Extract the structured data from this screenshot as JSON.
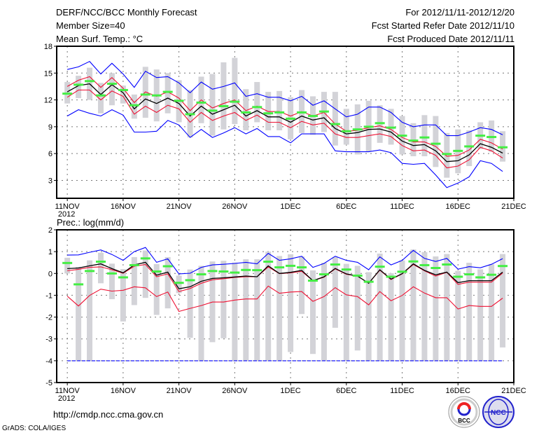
{
  "header": {
    "title": "DERF/NCC/BCC Monthly Forecast",
    "member_size": "Member Size=40",
    "variable": "Mean Surf. Temp.: °C",
    "period": "For 2012/11/11-2012/12/20",
    "start_date": "Fcst Started Refer Date 2012/11/10",
    "produced_date": "Fcst Produced Date 2012/11/11"
  },
  "footer": {
    "url": "http://cmdp.ncc.cma.gov.cn",
    "credit": "GrADS: COLA/IGES",
    "logo_bcc": "BCC",
    "logo_ncc": "NCC"
  },
  "colors": {
    "range_bar": "#d3d3d8",
    "green": "#44ee44",
    "blue": "#0000ff",
    "red": "#ee1133",
    "mean": "#000000"
  },
  "chart_data": [
    {
      "type": "line",
      "title": "Mean Surf. Temp.: °C",
      "xlabel": "",
      "ylabel": "",
      "x_tick_labels": [
        "11NOV",
        "16NOV",
        "21NOV",
        "26NOV",
        "1DEC",
        "6DEC",
        "11DEC",
        "16DEC",
        "21DEC"
      ],
      "x_tick_days": [
        0,
        5,
        10,
        15,
        20,
        25,
        30,
        35,
        40
      ],
      "year_label": "2012",
      "y_ticks": [
        3,
        6,
        9,
        12,
        15,
        18
      ],
      "ylim": [
        1,
        18
      ],
      "xlim": [
        -0.95,
        40
      ],
      "grid": true,
      "days": 40,
      "range_max": [
        14.0,
        14.7,
        15.6,
        13.9,
        15.0,
        13.6,
        12.6,
        15.7,
        15.4,
        15.0,
        14.2,
        13.1,
        14.6,
        14.9,
        16.2,
        16.7,
        13.2,
        14.0,
        12.9,
        13.0,
        12.3,
        13.1,
        12.4,
        12.9,
        12.9,
        11.0,
        11.5,
        11.9,
        11.4,
        11.0,
        10.2,
        9.4,
        10.3,
        10.2,
        8.3,
        8.7,
        8.6,
        9.5,
        9.7,
        8.5
      ],
      "range_min": [
        11.6,
        12.2,
        12.0,
        10.5,
        11.4,
        11.6,
        9.9,
        10.0,
        9.6,
        10.5,
        9.5,
        7.8,
        9.4,
        8.0,
        8.7,
        9.3,
        8.6,
        9.5,
        8.6,
        8.6,
        7.6,
        8.3,
        8.1,
        8.4,
        6.9,
        7.0,
        5.9,
        6.2,
        7.2,
        7.0,
        5.9,
        5.7,
        5.7,
        4.5,
        3.3,
        3.8,
        4.6,
        6.5,
        6.2,
        5.1
      ],
      "series": [
        {
          "name": "upper_bound",
          "color": "blue",
          "values": [
            15.4,
            15.7,
            16.3,
            14.9,
            16.1,
            14.9,
            13.4,
            15.2,
            14.5,
            14.6,
            13.9,
            12.8,
            14.0,
            13.2,
            13.5,
            13.9,
            12.4,
            12.7,
            12.3,
            12.3,
            11.9,
            12.4,
            11.4,
            11.9,
            11.0,
            10.1,
            10.4,
            11.2,
            11.2,
            10.6,
            9.5,
            9.0,
            9.2,
            9.2,
            8.0,
            8.0,
            8.4,
            8.9,
            8.7,
            8.1
          ]
        },
        {
          "name": "lower_bound",
          "color": "blue",
          "values": [
            10.2,
            10.9,
            10.5,
            10.2,
            10.9,
            10.3,
            8.4,
            8.4,
            8.5,
            9.7,
            9.2,
            7.8,
            8.7,
            7.8,
            8.3,
            8.9,
            8.2,
            8.8,
            7.9,
            7.9,
            7.2,
            8.2,
            8.2,
            8.2,
            6.3,
            6.2,
            6.2,
            6.2,
            6.4,
            6.1,
            4.9,
            4.8,
            4.9,
            3.6,
            2.2,
            2.7,
            3.4,
            5.2,
            4.9,
            4.0
          ]
        },
        {
          "name": "upper_spread",
          "color": "red",
          "values": [
            13.5,
            14.2,
            14.6,
            13.4,
            14.5,
            13.3,
            11.7,
            12.9,
            12.4,
            12.9,
            12.2,
            10.8,
            12.0,
            11.1,
            11.6,
            12.0,
            10.8,
            11.3,
            10.7,
            10.7,
            10.2,
            10.7,
            10.2,
            10.6,
            9.3,
            8.5,
            8.6,
            8.9,
            9.1,
            8.7,
            7.8,
            7.3,
            7.3,
            6.8,
            5.7,
            5.8,
            6.4,
            7.6,
            7.2,
            6.5
          ]
        },
        {
          "name": "lower_spread",
          "color": "red",
          "values": [
            12.3,
            13.1,
            13.1,
            12.0,
            13.0,
            12.4,
            10.4,
            11.3,
            10.6,
            11.4,
            11.0,
            9.5,
            10.6,
            9.7,
            10.2,
            10.6,
            9.7,
            10.3,
            9.5,
            9.5,
            8.9,
            9.6,
            9.2,
            9.4,
            8.2,
            7.8,
            7.8,
            8.0,
            8.2,
            7.9,
            6.9,
            6.3,
            6.4,
            5.8,
            4.4,
            4.6,
            5.3,
            6.7,
            6.3,
            5.5
          ]
        },
        {
          "name": "ensemble_mean",
          "color": "mean",
          "values": [
            12.9,
            13.6,
            13.8,
            12.6,
            13.7,
            12.8,
            11.0,
            12.1,
            11.6,
            12.2,
            11.6,
            10.2,
            11.3,
            10.4,
            10.9,
            11.4,
            10.2,
            10.8,
            10.1,
            10.1,
            9.5,
            10.2,
            9.75,
            10.0,
            8.8,
            8.2,
            8.35,
            8.7,
            8.75,
            8.4,
            7.4,
            6.9,
            7.0,
            6.3,
            5.1,
            5.2,
            5.85,
            7.1,
            6.7,
            6.05
          ]
        }
      ],
      "markers": {
        "name": "green_marker",
        "color": "green",
        "values": [
          12.7,
          13.7,
          14.1,
          12.5,
          13.8,
          13.1,
          11.4,
          12.6,
          12.5,
          12.9,
          11.9,
          10.4,
          11.7,
          10.8,
          11.3,
          11.8,
          10.6,
          11.2,
          10.5,
          10.6,
          9.9,
          10.6,
          10.2,
          10.7,
          9.3,
          8.5,
          8.7,
          9.0,
          9.4,
          8.9,
          8.0,
          7.45,
          7.8,
          7.1,
          5.95,
          6.3,
          6.8,
          8.0,
          7.85,
          6.7
        ]
      }
    },
    {
      "type": "line",
      "title": "Prec.: log(mm/d)",
      "xlabel": "",
      "ylabel": "",
      "x_tick_labels": [
        "11NOV",
        "16NOV",
        "21NOV",
        "26NOV",
        "1DEC",
        "6DEC",
        "11DEC",
        "16DEC",
        "21DEC"
      ],
      "x_tick_days": [
        0,
        5,
        10,
        15,
        20,
        25,
        30,
        35,
        40
      ],
      "year_label": "2012",
      "y_ticks": [
        -5,
        -4,
        -3,
        -2,
        -1,
        0,
        1,
        2
      ],
      "ylim": [
        -5,
        2
      ],
      "xlim": [
        -0.95,
        40
      ],
      "grid": true,
      "days": 40,
      "range_max": [
        0.72,
        0.3,
        0.6,
        0.95,
        0.45,
        0.2,
        0.75,
        1.05,
        0.43,
        0.75,
        -0.1,
        0.18,
        0.35,
        0.55,
        0.58,
        0.5,
        0.65,
        0.65,
        1.0,
        0.8,
        0.88,
        0.78,
        0.14,
        0.49,
        0.76,
        0.44,
        0.35,
        0.06,
        0.91,
        0.01,
        0.6,
        1.1,
        0.98,
        0.78,
        0.89,
        0.12,
        0.49,
        0.19,
        0.42,
        0.89
      ],
      "range_min": [
        0.0,
        -4,
        -4,
        -0.45,
        -1.18,
        -2.2,
        -1.45,
        -1.12,
        -1.9,
        -1.6,
        -0.9,
        -2.95,
        -4,
        -3.15,
        -2.97,
        -4,
        -4,
        -4,
        -4,
        -4,
        -3.6,
        -1.86,
        -3.69,
        -4,
        -2.49,
        -4,
        -3.53,
        -4,
        -4,
        -4,
        -4,
        -4,
        -4,
        -4,
        -4,
        -4,
        -4,
        -4,
        -4,
        -3.39
      ],
      "series": [
        {
          "name": "upper_bound",
          "color": "blue",
          "values": [
            0.84,
            0.85,
            0.97,
            1.08,
            0.87,
            0.6,
            1.0,
            1.19,
            0.51,
            0.67,
            -0.02,
            0.01,
            0.28,
            0.39,
            0.42,
            0.46,
            0.51,
            0.44,
            0.92,
            0.6,
            0.67,
            0.79,
            0.28,
            0.46,
            0.79,
            0.6,
            0.51,
            0.17,
            0.76,
            0.39,
            0.6,
            1.06,
            0.69,
            0.55,
            0.69,
            0.2,
            0.31,
            0.26,
            0.42,
            0.68
          ]
        },
        {
          "name": "lower_bound",
          "color": "blue",
          "dashed": true,
          "values": [
            -4,
            -4,
            -4,
            -4,
            -4,
            -4,
            -4,
            -4,
            -4,
            -4,
            -4,
            -4,
            -4,
            -4,
            -4,
            -4,
            -4,
            -4,
            -4,
            -4,
            -4,
            -4,
            -4,
            -4,
            -4,
            -4,
            -4,
            -4,
            -4,
            -4,
            -4,
            -4,
            -4,
            -4,
            -4,
            -4,
            -4,
            -4,
            -4,
            -4
          ]
        },
        {
          "name": "upper_spread",
          "color": "red",
          "values": [
            0.12,
            0.19,
            0.28,
            0.3,
            0.17,
            0.01,
            0.33,
            0.41,
            -0.15,
            -0.02,
            -0.83,
            -0.69,
            -0.45,
            -0.29,
            -0.24,
            -0.18,
            -0.15,
            -0.15,
            0.3,
            -0.01,
            0.03,
            0.1,
            -0.33,
            -0.17,
            0.21,
            -0.04,
            -0.12,
            -0.45,
            0.15,
            -0.28,
            -0.02,
            0.41,
            0.12,
            -0.12,
            0.05,
            -0.5,
            -0.4,
            -0.4,
            -0.4,
            0.02
          ]
        },
        {
          "name": "lower_spread",
          "color": "red",
          "values": [
            -1.04,
            -1.49,
            -1.01,
            -0.72,
            -0.81,
            -0.77,
            -0.61,
            -0.66,
            -1.06,
            -0.85,
            -1.74,
            -1.6,
            -1.47,
            -1.31,
            -1.31,
            -1.22,
            -1.17,
            -1.17,
            -0.58,
            -0.91,
            -0.85,
            -0.83,
            -1.28,
            -1.06,
            -0.65,
            -0.98,
            -1.06,
            -1.44,
            -0.83,
            -1.25,
            -1.01,
            -0.61,
            -0.9,
            -1.11,
            -1.11,
            -1.63,
            -1.47,
            -1.51,
            -1.51,
            -1.13
          ]
        },
        {
          "name": "ensemble_mean",
          "color": "mean",
          "values": [
            0.22,
            0.25,
            0.35,
            0.44,
            0.22,
            0.03,
            0.39,
            0.51,
            -0.08,
            0.06,
            -0.7,
            -0.61,
            -0.36,
            -0.23,
            -0.2,
            -0.16,
            -0.12,
            -0.15,
            0.35,
            0.0,
            0.05,
            0.14,
            -0.33,
            -0.15,
            0.23,
            -0.02,
            -0.12,
            -0.45,
            0.17,
            -0.26,
            -0.01,
            0.44,
            0.14,
            -0.06,
            0.06,
            -0.42,
            -0.33,
            -0.33,
            -0.33,
            0.06
          ]
        }
      ],
      "markers": {
        "name": "green_marker",
        "color": "green",
        "values": [
          0.48,
          -0.5,
          0.11,
          0.54,
          0.0,
          -0.18,
          0.38,
          0.69,
          0.09,
          0.33,
          -0.43,
          -0.31,
          -0.04,
          0.11,
          0.09,
          0.04,
          0.16,
          0.15,
          0.54,
          0.28,
          0.35,
          0.28,
          -0.33,
          -0.04,
          0.41,
          0.18,
          -0.1,
          -0.38,
          0.31,
          -0.15,
          0.08,
          0.55,
          0.38,
          0.25,
          0.41,
          -0.15,
          -0.04,
          -0.18,
          -0.06,
          0.34
        ]
      }
    }
  ]
}
